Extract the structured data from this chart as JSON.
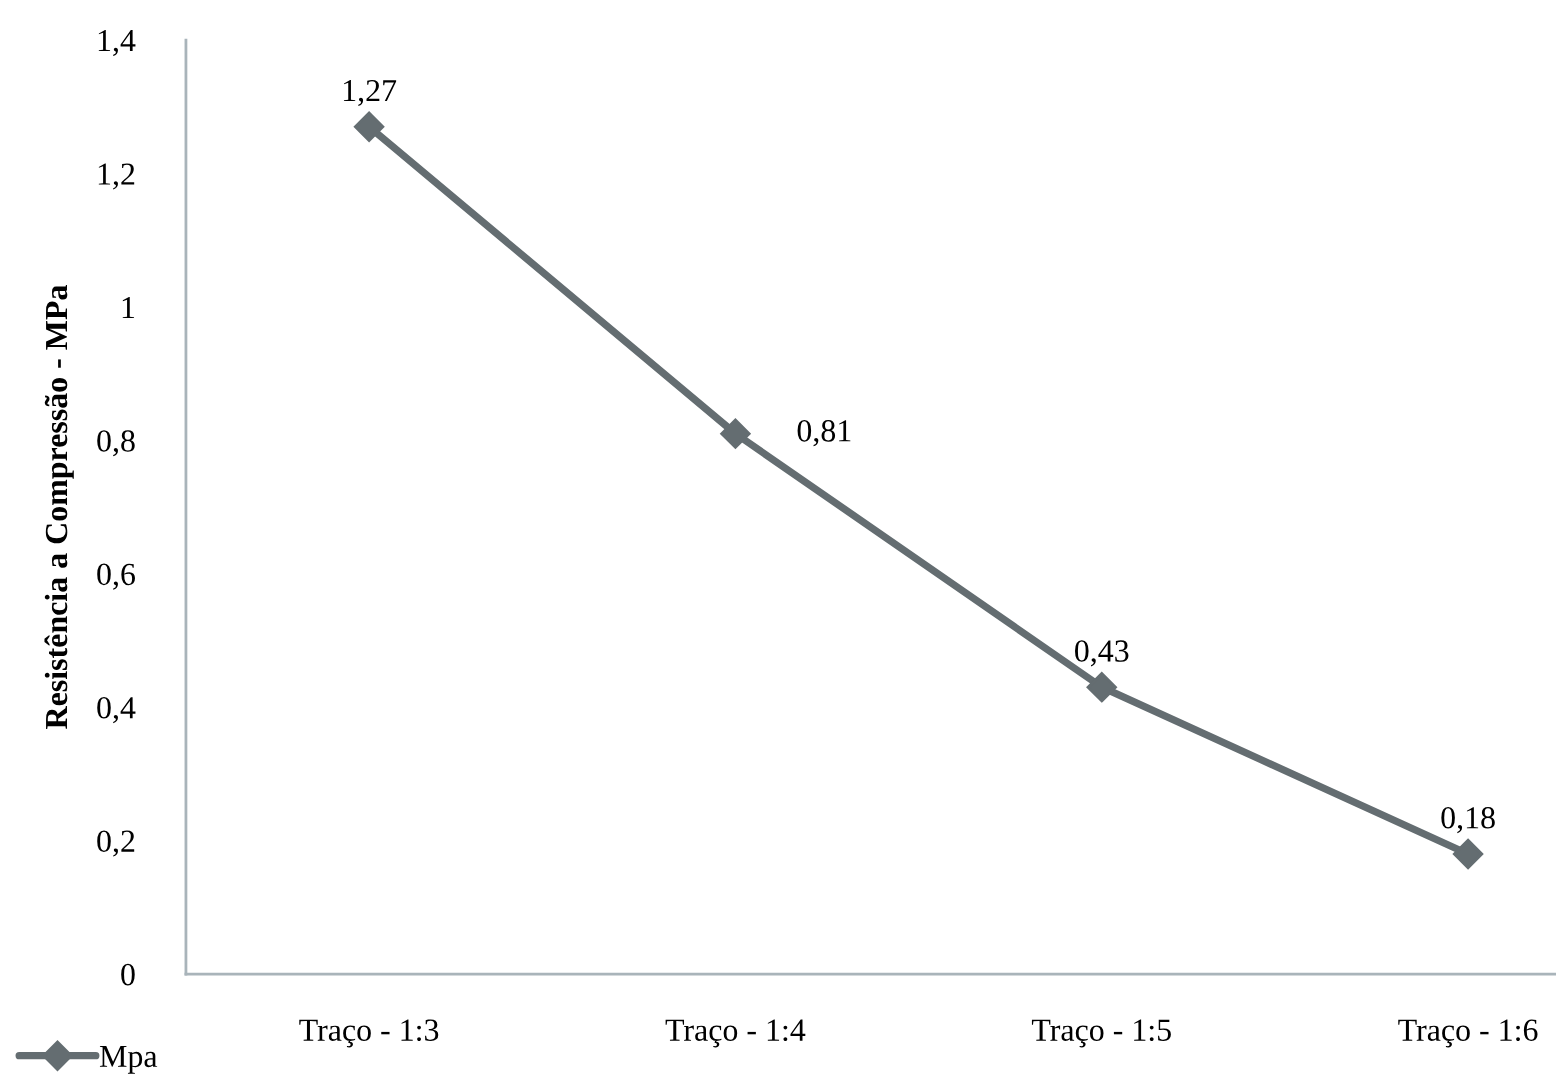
{
  "chart_data": {
    "type": "line",
    "ylabel": "Resistência a Compressão - MPa",
    "categories": [
      "Traço - 1:3",
      "Traço - 1:4",
      "Traço - 1:5",
      "Traço - 1:6"
    ],
    "series": [
      {
        "name": "Mpa",
        "color": "#646d71",
        "values": [
          1.27,
          0.81,
          0.43,
          0.18
        ],
        "value_labels": [
          "1,27",
          "0,81",
          "0,43",
          "0,18"
        ]
      }
    ],
    "ylim": [
      0,
      1.4
    ],
    "yticks": [
      0,
      {
        "value": 0.2,
        "label": "0,2"
      },
      {
        "value": 0.4,
        "label": "0,4"
      },
      {
        "value": 0.6,
        "label": "0,6"
      },
      {
        "value": 0.8,
        "label": "0,8"
      },
      1,
      {
        "value": 1.2,
        "label": "1,2"
      },
      {
        "value": 1.4,
        "label": "1,4"
      }
    ],
    "marker": "diamond",
    "line_style": "solid",
    "grid": false,
    "legend": "bottom left"
  }
}
